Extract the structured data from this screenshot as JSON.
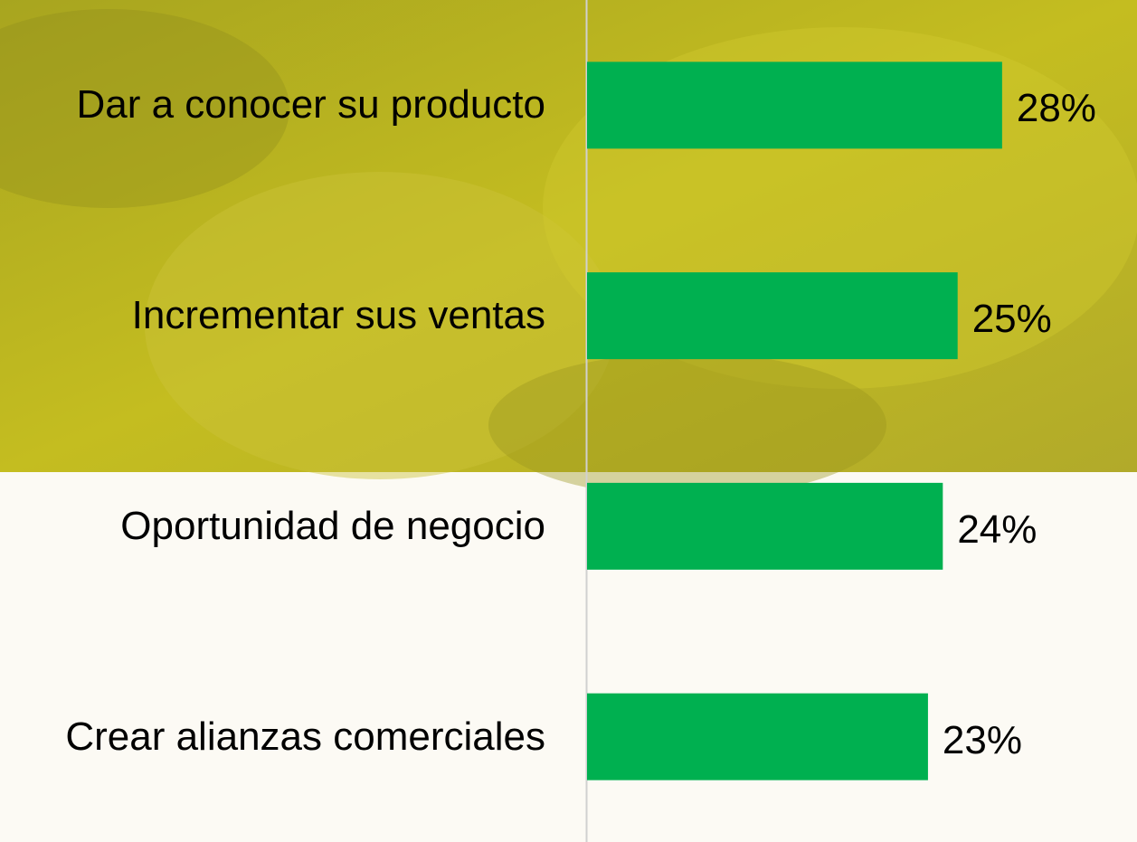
{
  "chart_data": {
    "type": "barh",
    "categories": [
      "Dar a conocer su producto",
      "Incrementar sus ventas",
      "Oportunidad de negocio",
      "Crear alianzas comerciales"
    ],
    "values": [
      28,
      25,
      24,
      23
    ],
    "value_labels": [
      "28%",
      "25%",
      "24%",
      "23%"
    ],
    "color": "#00b050",
    "xlim": [
      0,
      37.1
    ]
  }
}
